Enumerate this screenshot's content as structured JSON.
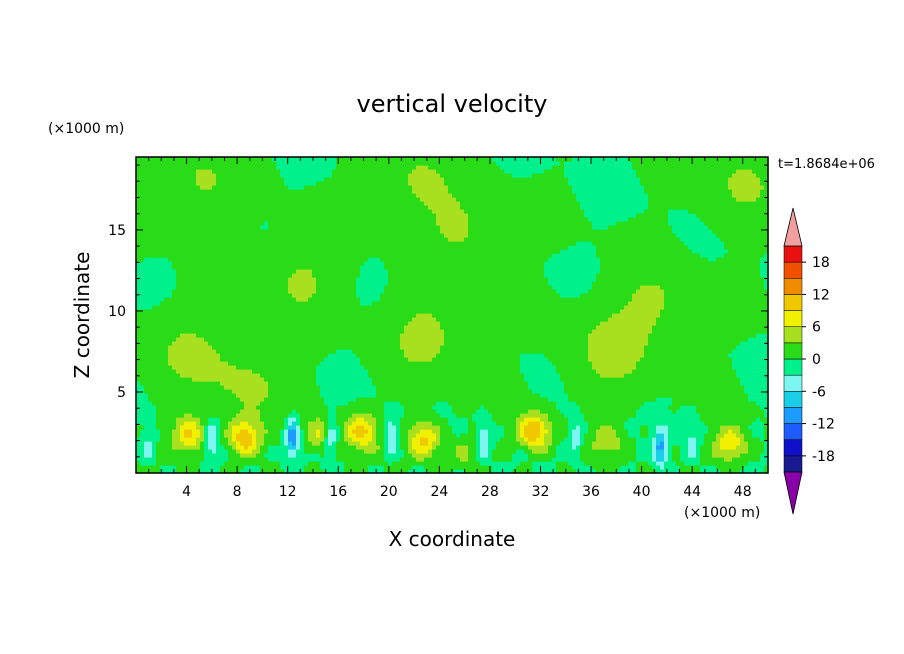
{
  "chart_data": {
    "type": "heatmap",
    "title": "vertical velocity",
    "xlabel": "X coordinate",
    "ylabel": "Z coordinate",
    "x_unit": "(×1000 m)",
    "z_unit": "(×1000 m)",
    "time_label": "t=1.8684e+06",
    "xlim": [
      0,
      50
    ],
    "zlim": [
      0,
      19.5
    ],
    "x_ticks": [
      4,
      8,
      12,
      16,
      20,
      24,
      28,
      32,
      36,
      40,
      44,
      48
    ],
    "z_ticks": [
      5,
      10,
      15
    ],
    "colorbar": {
      "levels": [
        -21,
        -18,
        -15,
        -12,
        -9,
        -6,
        -3,
        0,
        3,
        6,
        9,
        12,
        15,
        18,
        21
      ],
      "labels": [
        "18",
        "12",
        "6",
        "0",
        "-6",
        "-12",
        "-18"
      ],
      "label_values": [
        18,
        12,
        6,
        0,
        -6,
        -12,
        -18
      ],
      "colors": [
        "#4b0082",
        "#1a1a90",
        "#1010c8",
        "#1e5cff",
        "#1e9bff",
        "#19cfe8",
        "#7df5f0",
        "#00f08c",
        "#2adc18",
        "#a8e020",
        "#f0f000",
        "#f0c800",
        "#f08c00",
        "#f05000",
        "#e81010",
        "#e01010"
      ],
      "under_color": "#8a00a8",
      "over_color": "#f0a0a0"
    },
    "background_value": 0,
    "features": [
      {
        "kind": "updraft",
        "x": 4.2,
        "z": 2.4,
        "amplitude": 9
      },
      {
        "kind": "updraft",
        "x": 8.6,
        "z": 2.2,
        "amplitude": 11
      },
      {
        "kind": "updraft",
        "x": 17.8,
        "z": 2.6,
        "amplitude": 10
      },
      {
        "kind": "updraft",
        "x": 22.8,
        "z": 2.1,
        "amplitude": 10
      },
      {
        "kind": "updraft",
        "x": 31.5,
        "z": 2.6,
        "amplitude": 12
      },
      {
        "kind": "updraft",
        "x": 37.3,
        "z": 2.0,
        "amplitude": 5
      },
      {
        "kind": "updraft",
        "x": 47.0,
        "z": 1.8,
        "amplitude": 9
      },
      {
        "kind": "updraft",
        "x": 14.6,
        "z": 2.4,
        "amplitude": 6
      },
      {
        "kind": "updraft",
        "x": 26.0,
        "z": 1.2,
        "amplitude": 3
      },
      {
        "kind": "downdraft",
        "x": 6.0,
        "z": 2.0,
        "amplitude": -7
      },
      {
        "kind": "downdraft",
        "x": 12.4,
        "z": 2.2,
        "amplitude": -12
      },
      {
        "kind": "downdraft",
        "x": 15.4,
        "z": 2.2,
        "amplitude": -8
      },
      {
        "kind": "downdraft",
        "x": 20.2,
        "z": 2.3,
        "amplitude": -6
      },
      {
        "kind": "downdraft",
        "x": 27.5,
        "z": 2.0,
        "amplitude": -6
      },
      {
        "kind": "downdraft",
        "x": 34.8,
        "z": 2.2,
        "amplitude": -5
      },
      {
        "kind": "downdraft",
        "x": 41.5,
        "z": 1.6,
        "amplitude": -10
      },
      {
        "kind": "downdraft",
        "x": 1.0,
        "z": 1.6,
        "amplitude": -4
      },
      {
        "kind": "downdraft",
        "x": 44.0,
        "z": 2.0,
        "amplitude": -4
      }
    ],
    "weak_positive_regions": [
      {
        "x": 4.0,
        "z": 7.5,
        "amplitude": 1.5
      },
      {
        "x": 9.0,
        "z": 5.5,
        "amplitude": 1.5
      },
      {
        "x": 13.0,
        "z": 12.0,
        "amplitude": 1.5
      },
      {
        "x": 23.0,
        "z": 8.5,
        "amplitude": 1.8
      },
      {
        "x": 26.0,
        "z": 15.0,
        "amplitude": 1.5
      },
      {
        "x": 22.0,
        "z": 18.0,
        "amplitude": 1.5
      },
      {
        "x": 37.5,
        "z": 7.5,
        "amplitude": 1.8
      },
      {
        "x": 41.0,
        "z": 10.5,
        "amplitude": 1.5
      },
      {
        "x": 5.0,
        "z": 18.0,
        "amplitude": 1.5
      },
      {
        "x": 48.0,
        "z": 18.0,
        "amplitude": 1.5
      }
    ]
  }
}
